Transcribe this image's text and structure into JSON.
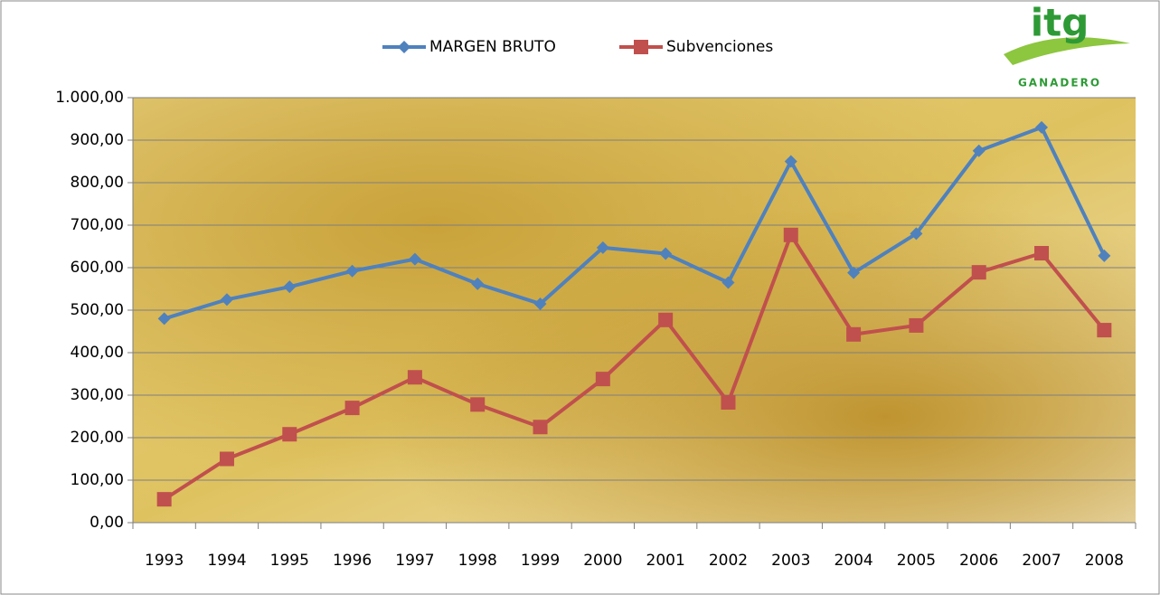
{
  "chart_data": {
    "type": "line",
    "categories": [
      "1993",
      "1994",
      "1995",
      "1996",
      "1997",
      "1998",
      "1999",
      "2000",
      "2001",
      "2002",
      "2003",
      "2004",
      "2005",
      "2006",
      "2007",
      "2008"
    ],
    "series": [
      {
        "name": "MARGEN BRUTO",
        "color": "#4f81bd",
        "marker": "diamond",
        "values": [
          480,
          525,
          555,
          592,
          620,
          562,
          515,
          647,
          633,
          565,
          850,
          588,
          680,
          875,
          930,
          628
        ]
      },
      {
        "name": "Subvenciones",
        "color": "#c0504d",
        "marker": "square",
        "values": [
          55,
          150,
          208,
          270,
          342,
          278,
          225,
          338,
          477,
          283,
          677,
          443,
          464,
          589,
          634,
          453
        ]
      }
    ],
    "ylim": [
      0,
      1000
    ],
    "yticks": [
      {
        "value": 0,
        "label": "0,00"
      },
      {
        "value": 100,
        "label": "100,00"
      },
      {
        "value": 200,
        "label": "200,00"
      },
      {
        "value": 300,
        "label": "300,00"
      },
      {
        "value": 400,
        "label": "400,00"
      },
      {
        "value": 500,
        "label": "500,00"
      },
      {
        "value": 600,
        "label": "600,00"
      },
      {
        "value": 700,
        "label": "700,00"
      },
      {
        "value": 800,
        "label": "800,00"
      },
      {
        "value": 900,
        "label": "900,00"
      },
      {
        "value": 1000,
        "label": "1.000,00"
      }
    ],
    "grid": true,
    "legend": "top"
  },
  "logo": {
    "mark": "itg",
    "label": "GANADERO"
  }
}
